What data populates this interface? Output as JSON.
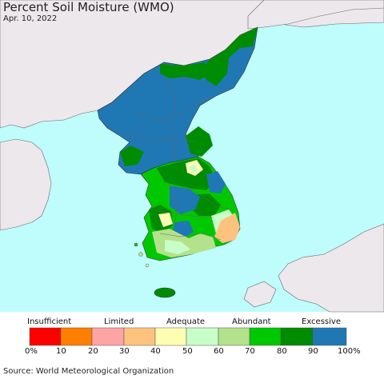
{
  "title": "Percent Soil Moisture (WMO)",
  "date": "Apr. 10, 2022",
  "source": "Source: World Meteorological Organization",
  "legend": {
    "categories": [
      "Insufficient",
      "Limited",
      "Adequate",
      "Abundant",
      "Excessive"
    ],
    "ticks": [
      "0%",
      "10",
      "20",
      "30",
      "40",
      "50",
      "60",
      "70",
      "80",
      "90",
      "100%"
    ],
    "colors": [
      "#fe0000",
      "#fe7f00",
      "#fea4a4",
      "#fec27f",
      "#fefeb3",
      "#c8fec8",
      "#b4e28c",
      "#00c800",
      "#008c00",
      "#1f78b4"
    ]
  },
  "map_colors": {
    "sea": "#bffcfc",
    "neighbor_land": "#ede8ec",
    "excessive": "#1f78b4",
    "abundant_high": "#008c00",
    "abundant": "#00c800",
    "adequate_high": "#b4e28c",
    "adequate": "#c8fec8",
    "limited_low": "#fefeb3",
    "limited": "#fec27f"
  }
}
